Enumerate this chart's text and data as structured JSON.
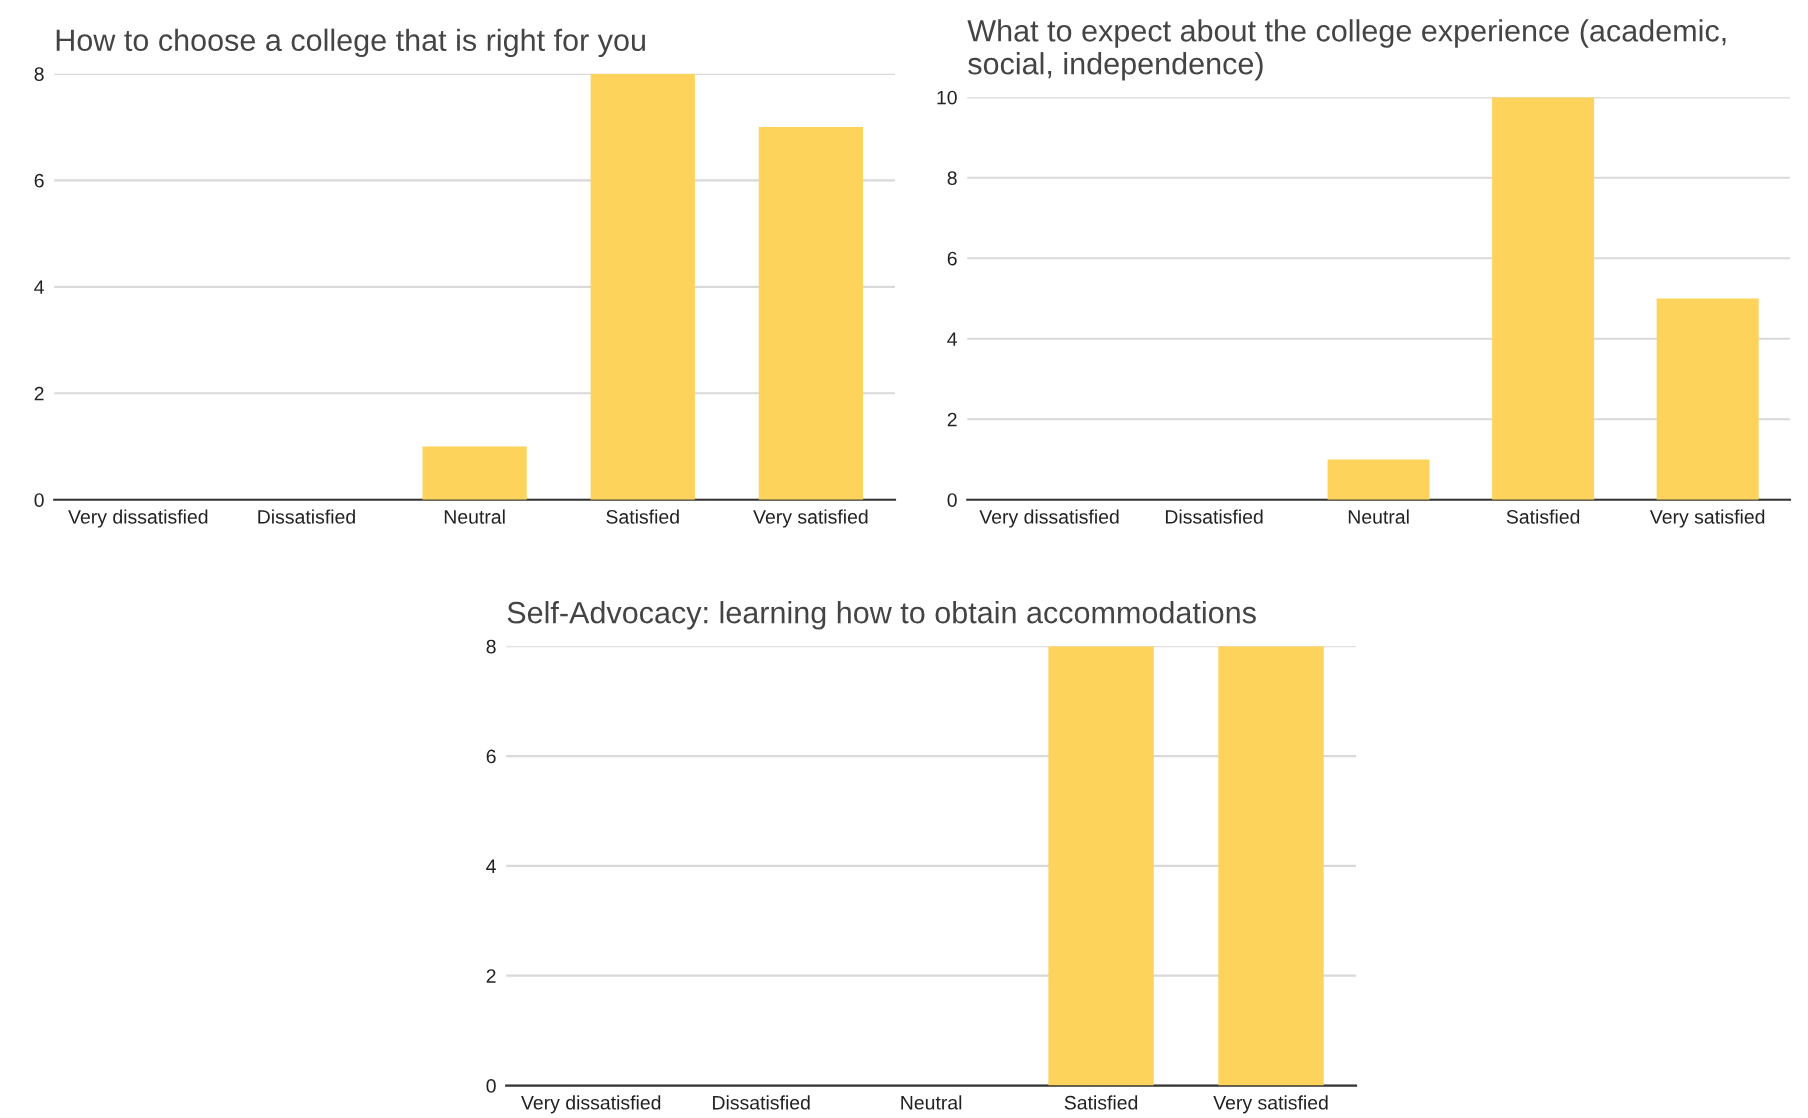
{
  "chart_data": [
    {
      "type": "bar",
      "title": "How to choose a college that is right for you",
      "categories": [
        "Very dissatisfied",
        "Dissatisfied",
        "Neutral",
        "Satisfied",
        "Very satisfied"
      ],
      "values": [
        0,
        0,
        1,
        8,
        7
      ],
      "color": "#fdd35c",
      "ylim": [
        0,
        8
      ],
      "yticks": [
        0,
        2,
        4,
        6,
        8
      ],
      "grid": "y"
    },
    {
      "type": "bar",
      "title": "What to expect about the college experience (academic, social, independence)",
      "categories": [
        "Very dissatisfied",
        "Dissatisfied",
        "Neutral",
        "Satisfied",
        "Very satisfied"
      ],
      "values": [
        0,
        0,
        1,
        10,
        5
      ],
      "color": "#fdd35c",
      "ylim": [
        0,
        10
      ],
      "yticks": [
        0,
        2,
        4,
        6,
        8,
        10
      ],
      "grid": "y"
    },
    {
      "type": "bar",
      "title": "Self-Advocacy: learning how to obtain accommodations",
      "categories": [
        "Very dissatisfied",
        "Dissatisfied",
        "Neutral",
        "Satisfied",
        "Very satisfied"
      ],
      "values": [
        0,
        0,
        0,
        8,
        8
      ],
      "color": "#fdd35c",
      "ylim": [
        0,
        8
      ],
      "yticks": [
        0,
        2,
        4,
        6,
        8
      ],
      "grid": "y"
    }
  ]
}
